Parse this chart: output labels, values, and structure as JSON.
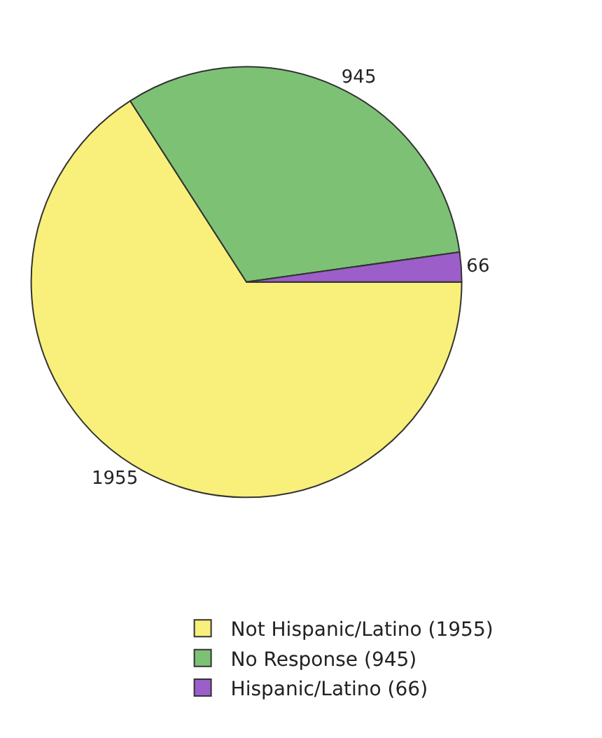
{
  "chart_data": {
    "type": "pie",
    "categories": [
      "Not Hispanic/Latino (1955)",
      "No Response (945)",
      "Hispanic/Latino (66)"
    ],
    "values": [
      1955,
      945,
      66
    ],
    "colors": [
      "#f8f07a",
      "#7dc274",
      "#9c5fc9"
    ],
    "data_labels": true,
    "legend": "bottom"
  }
}
